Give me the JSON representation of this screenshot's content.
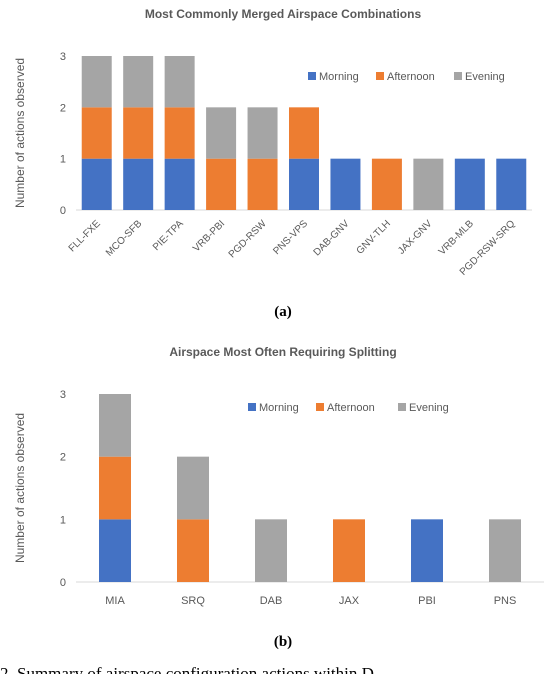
{
  "colors": {
    "morning": "#4472C4",
    "afternoon": "#ED7D31",
    "evening": "#A5A5A5",
    "text": "#595959",
    "axis": "#d9d9d9"
  },
  "legend_labels": [
    "Morning",
    "Afternoon",
    "Evening"
  ],
  "chart_data": [
    {
      "type": "bar",
      "stacked": true,
      "title": "Most Commonly Merged Airspace Combinations",
      "xlabel": "",
      "ylabel": "Number of actions observed",
      "ylim": [
        0,
        3
      ],
      "yticks": [
        "0",
        "1",
        "2",
        "3"
      ],
      "categories": [
        "FLL-FXE",
        "MCO-SFB",
        "PIE-TPA",
        "VRB-PBI",
        "PGD-RSW",
        "PNS-VPS",
        "DAB-GNV",
        "GNV-TLH",
        "JAX-GNV",
        "VRB-MLB",
        "PGD-RSW-SRQ"
      ],
      "series": [
        {
          "name": "Morning",
          "color": "#4472C4",
          "values": [
            1,
            1,
            1,
            0,
            0,
            1,
            1,
            0,
            0,
            1,
            1
          ]
        },
        {
          "name": "Afternoon",
          "color": "#ED7D31",
          "values": [
            1,
            1,
            1,
            1,
            1,
            1,
            0,
            1,
            0,
            0,
            0
          ]
        },
        {
          "name": "Evening",
          "color": "#A5A5A5",
          "values": [
            1,
            1,
            1,
            1,
            1,
            0,
            0,
            0,
            1,
            0,
            0
          ]
        }
      ],
      "legend_position": "top-right",
      "grid": false,
      "caption": "(a)"
    },
    {
      "type": "bar",
      "stacked": true,
      "title": "Airspace Most Often Requiring Splitting",
      "xlabel": "",
      "ylabel": "Number of actions observed",
      "ylim": [
        0,
        3
      ],
      "yticks": [
        "0",
        "1",
        "2",
        "3"
      ],
      "categories": [
        "MIA",
        "SRQ",
        "DAB",
        "JAX",
        "PBI",
        "PNS"
      ],
      "series": [
        {
          "name": "Morning",
          "color": "#4472C4",
          "values": [
            1,
            0,
            0,
            0,
            1,
            0
          ]
        },
        {
          "name": "Afternoon",
          "color": "#ED7D31",
          "values": [
            1,
            1,
            0,
            1,
            0,
            0
          ]
        },
        {
          "name": "Evening",
          "color": "#A5A5A5",
          "values": [
            1,
            1,
            1,
            0,
            0,
            1
          ]
        }
      ],
      "legend_position": "top-right",
      "grid": false,
      "caption": "(b)"
    }
  ],
  "bottom_text": "2.    Summary of airspace configuration actions within D"
}
